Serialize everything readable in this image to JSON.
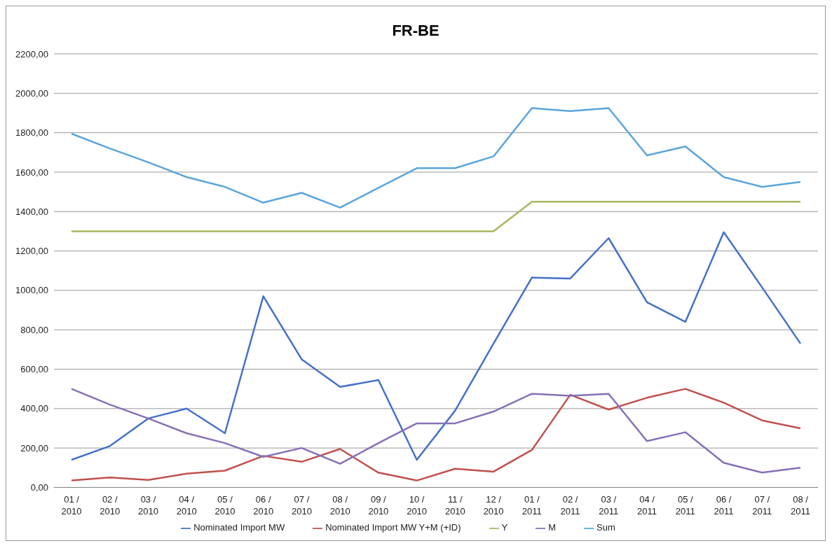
{
  "chart_data": {
    "type": "line",
    "title": "FR-BE",
    "categories": [
      "01 / 2010",
      "02 / 2010",
      "03 / 2010",
      "04 / 2010",
      "05 / 2010",
      "06 / 2010",
      "07 / 2010",
      "08 / 2010",
      "09 / 2010",
      "10 / 2010",
      "11 / 2010",
      "12 / 2010",
      "01 / 2011",
      "02 / 2011",
      "03 / 2011",
      "04 / 2011",
      "05 / 2011",
      "06 / 2011",
      "07 / 2011",
      "08 / 2011"
    ],
    "series": [
      {
        "name": "Nominated Import MW",
        "color": "#4471c9",
        "values": [
          140,
          210,
          350,
          400,
          275,
          970,
          650,
          510,
          545,
          140,
          390,
          730,
          1065,
          1060,
          1265,
          940,
          840,
          1295,
          1015,
          730
        ]
      },
      {
        "name": "Nominated Import MW Y+M (+ID)",
        "color": "#c0504d",
        "values": [
          35,
          50,
          38,
          70,
          85,
          160,
          130,
          195,
          75,
          35,
          95,
          80,
          190,
          470,
          395,
          455,
          500,
          430,
          340,
          300
        ]
      },
      {
        "name": "Y",
        "color": "#a8b85e",
        "values": [
          1300,
          1300,
          1300,
          1300,
          1300,
          1300,
          1300,
          1300,
          1300,
          1300,
          1300,
          1300,
          1450,
          1450,
          1450,
          1450,
          1450,
          1450,
          1450,
          1450
        ]
      },
      {
        "name": "M",
        "color": "#8670b8",
        "values": [
          500,
          420,
          350,
          275,
          225,
          155,
          200,
          120,
          225,
          325,
          325,
          385,
          475,
          465,
          475,
          235,
          280,
          125,
          75,
          100
        ]
      },
      {
        "name": "Sum",
        "color": "#5aa5dc",
        "values": [
          1795,
          1720,
          1650,
          1575,
          1525,
          1445,
          1495,
          1420,
          1520,
          1620,
          1620,
          1680,
          1925,
          1910,
          1925,
          1685,
          1730,
          1575,
          1525,
          1550
        ]
      }
    ],
    "ylim": [
      0,
      2200
    ],
    "yticks": [
      {
        "value": 0,
        "label": "0,00"
      },
      {
        "value": 200,
        "label": "200,00"
      },
      {
        "value": 400,
        "label": "400,00"
      },
      {
        "value": 600,
        "label": "600,00"
      },
      {
        "value": 800,
        "label": "800,00"
      },
      {
        "value": 1000,
        "label": "1000,00"
      },
      {
        "value": 1200,
        "label": "1200,00"
      },
      {
        "value": 1400,
        "label": "1400,00"
      },
      {
        "value": 1600,
        "label": "1600,00"
      },
      {
        "value": 1800,
        "label": "1800,00"
      },
      {
        "value": 2000,
        "label": "2000,00"
      },
      {
        "value": 2200,
        "label": "2200,00"
      }
    ],
    "grid": "y",
    "legend": "bottom",
    "marker": "none",
    "line_style": "solid"
  }
}
